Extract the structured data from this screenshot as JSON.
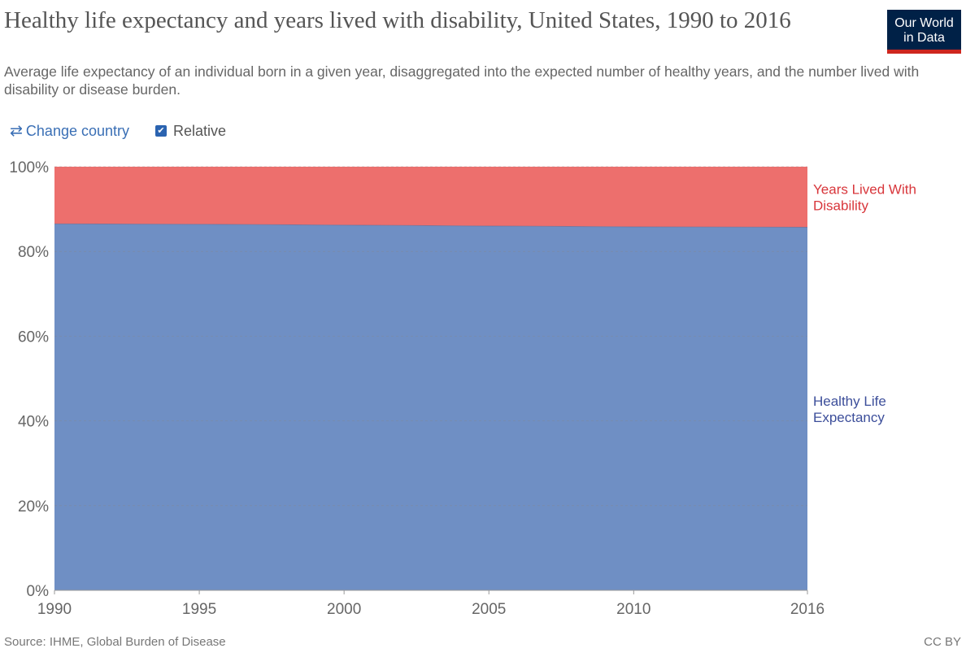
{
  "header": {
    "title": "Healthy life expectancy and years lived with disability, United States, 1990 to 2016",
    "subtitle": "Average life expectancy of an individual born in a given year, disaggregated into the expected number of healthy years, and the number lived with disability or disease burden.",
    "logo_line1": "Our World",
    "logo_line2": "in Data"
  },
  "controls": {
    "change_country_label": "Change country",
    "relative_label": "Relative",
    "relative_checked": true
  },
  "footer": {
    "source": "Source: IHME, Global Burden of Disease",
    "license": "CC BY"
  },
  "colors": {
    "healthy": "#6f8fc4",
    "disability": "#ed6f6d",
    "healthy_label": "#3c4e9a",
    "disability_label": "#d8363b",
    "logo_bg": "#002147",
    "logo_accent": "#ce261e"
  },
  "chart_data": {
    "type": "area",
    "stacked": true,
    "relative": true,
    "x": [
      1990,
      1995,
      2000,
      2005,
      2010,
      2016
    ],
    "xlim": [
      1990,
      2016
    ],
    "x_ticks": [
      1990,
      1995,
      2000,
      2005,
      2010,
      2016
    ],
    "ylim": [
      0,
      100
    ],
    "y_ticks": [
      0,
      20,
      40,
      60,
      80,
      100
    ],
    "y_tick_labels": [
      "0%",
      "20%",
      "40%",
      "60%",
      "80%",
      "100%"
    ],
    "grid": true,
    "legend": "right-inline",
    "series": [
      {
        "name": "Healthy Life Expectancy",
        "color": "#6f8fc4",
        "values": [
          86.5,
          86.4,
          86.2,
          86.0,
          85.8,
          85.7
        ]
      },
      {
        "name": "Years Lived With Disability",
        "color": "#ed6f6d",
        "values": [
          13.5,
          13.6,
          13.8,
          14.0,
          14.2,
          14.3
        ]
      }
    ]
  }
}
